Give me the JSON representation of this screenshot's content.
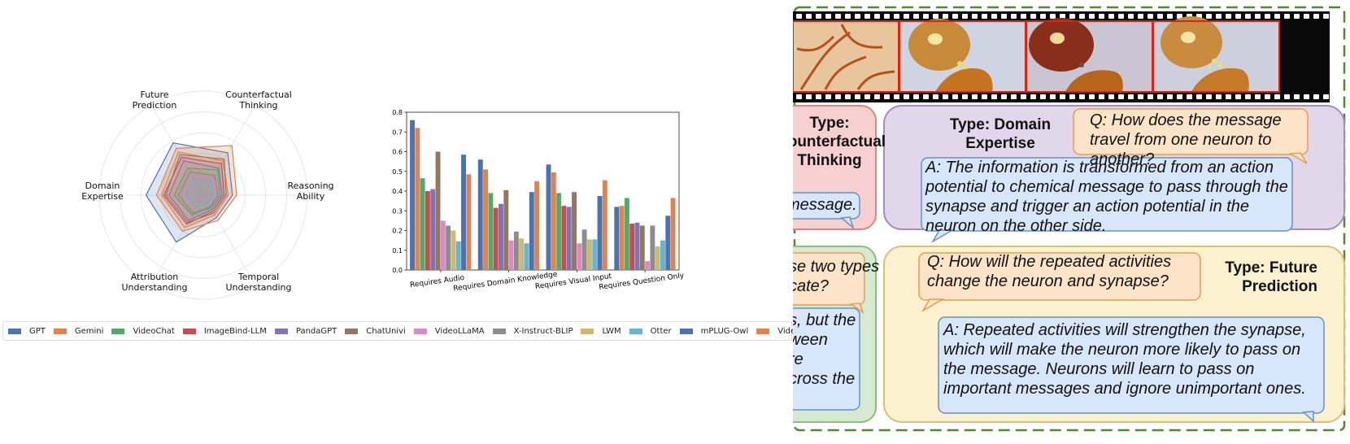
{
  "radar": {
    "axes": [
      "Future\nPrediction",
      "Counterfactual\nThinking",
      "Reasoning\nAbility",
      "Temporal\nUnderstanding",
      "Attribution\nUnderstanding",
      "Domain\nExpertise"
    ]
  },
  "legend": [
    {
      "name": "GPT",
      "color": "#4c72b0"
    },
    {
      "name": "Gemini",
      "color": "#dd8452"
    },
    {
      "name": "VideoChat",
      "color": "#55a868"
    },
    {
      "name": "ImageBind-LLM",
      "color": "#c44e52"
    },
    {
      "name": "PandaGPT",
      "color": "#8172b3"
    },
    {
      "name": "ChatUnivi",
      "color": "#937860"
    },
    {
      "name": "VideoLLaMA",
      "color": "#da8bc3"
    },
    {
      "name": "X-Instruct-BLIP",
      "color": "#8c8c8c"
    },
    {
      "name": "LWM",
      "color": "#ccb974"
    },
    {
      "name": "Otter",
      "color": "#64b5cd"
    },
    {
      "name": "mPLUG-Owl",
      "color": "#4c72b0"
    },
    {
      "name": "Video-LLaVA",
      "color": "#dd8452"
    }
  ],
  "chart_data": {
    "type": "bar",
    "categories": [
      "Requires Audio",
      "Requires Domain Knowledge",
      "Requires Visual Input",
      "Requires Question Only"
    ],
    "ylim": [
      0,
      0.8
    ],
    "yticks": [
      "0.0",
      "0.1",
      "0.2",
      "0.3",
      "0.4",
      "0.5",
      "0.6",
      "0.7",
      "0.8"
    ],
    "series": [
      {
        "name": "GPT",
        "values": [
          0.76,
          0.56,
          0.535,
          0.32
        ]
      },
      {
        "name": "Gemini",
        "values": [
          0.72,
          0.51,
          0.495,
          0.325
        ]
      },
      {
        "name": "VideoChat",
        "values": [
          0.465,
          0.39,
          0.39,
          0.365
        ]
      },
      {
        "name": "ImageBind-LLM",
        "values": [
          0.4,
          0.315,
          0.325,
          0.235
        ]
      },
      {
        "name": "PandaGPT",
        "values": [
          0.41,
          0.335,
          0.32,
          0.24
        ]
      },
      {
        "name": "ChatUnivi",
        "values": [
          0.6,
          0.405,
          0.395,
          0.225
        ]
      },
      {
        "name": "VideoLLaMA",
        "values": [
          0.25,
          0.15,
          0.135,
          0.045
        ]
      },
      {
        "name": "X-Instruct-BLIP",
        "values": [
          0.225,
          0.195,
          0.205,
          0.225
        ]
      },
      {
        "name": "LWM",
        "values": [
          0.2,
          0.16,
          0.155,
          0.12
        ]
      },
      {
        "name": "Otter",
        "values": [
          0.145,
          0.135,
          0.155,
          0.15
        ]
      },
      {
        "name": "mPLUG-Owl",
        "values": [
          0.585,
          0.395,
          0.375,
          0.275
        ]
      },
      {
        "name": "Video-LLaVA",
        "values": [
          0.485,
          0.45,
          0.455,
          0.365
        ]
      }
    ]
  },
  "panel": {
    "type_counterfactual": "Type:\nCounterfactual\nThinking",
    "cf_answer_fragment": "message.",
    "type_domain": "Type: Domain\nExpertise",
    "domain_q": "Q: How does the message travel from one neuron to another?",
    "domain_a": "A: The information is transformed from an action potential to chemical message to pass through the synapse and trigger an action potential in the neuron on the other side.",
    "left_q_fragment": "se two types\ncate?",
    "left_a_fragment": "s, but the\nween\nre\ncross the",
    "future_q": "Q: How will the repeated activities change the neuron and synapse?",
    "type_future": "Type: Future\nPrediction",
    "future_a": "A: Repeated activities will strengthen the synapse, which will make the neuron more likely to pass on the message. Neurons will learn to pass on important messages and ignore unimportant ones."
  }
}
